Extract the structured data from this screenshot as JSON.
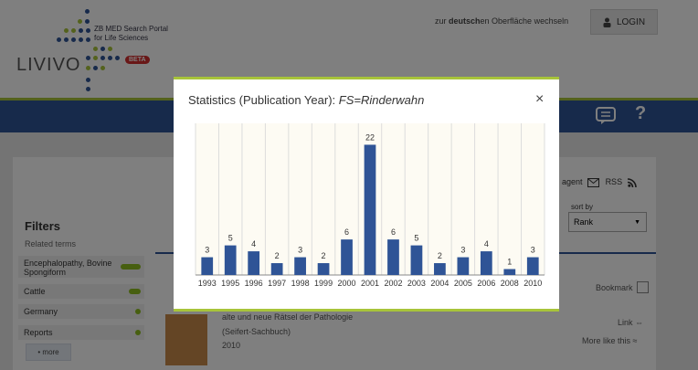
{
  "header": {
    "logo": "LIVIVO",
    "portal_line1": "ZB MED Search Portal",
    "portal_line2": "for Life Sciences",
    "beta": "BETA",
    "lang_prefix": "zur ",
    "lang_bold": "deutsch",
    "lang_suffix": "en Oberfläche wechseln",
    "login": "LOGIN"
  },
  "nav": {
    "help": "?"
  },
  "sidebar": {
    "title": "Filters",
    "related": "Related terms",
    "items": [
      {
        "label": "Encephalopathy, Bovine Spongiform",
        "level": 1.0
      },
      {
        "label": "Cattle",
        "level": 0.6
      },
      {
        "label": "Germany",
        "level": 0.3
      },
      {
        "label": "Reports",
        "level": 0.3
      }
    ],
    "more": "• more"
  },
  "toolbar": {
    "agent": "rch agent",
    "rss": "RSS",
    "sort_label": "sort by",
    "sort_value": "Rank"
  },
  "result": {
    "bookmark": "Bookmark",
    "title": "alte und neue Rätsel der Pathologie",
    "series": "(Seifert-Sachbuch)",
    "year": "2010",
    "link": "Link",
    "more_like": "More like this"
  },
  "modal": {
    "title_prefix": "Statistics (Publication Year): ",
    "title_query": "FS=Rinderwahn",
    "close": "×"
  },
  "chart_data": {
    "type": "bar",
    "categories": [
      "1993",
      "1995",
      "1996",
      "1997",
      "1998",
      "1999",
      "2000",
      "2001",
      "2002",
      "2003",
      "2004",
      "2005",
      "2006",
      "2008",
      "2010"
    ],
    "values": [
      3,
      5,
      4,
      2,
      3,
      2,
      6,
      22,
      6,
      5,
      2,
      3,
      4,
      1,
      3
    ],
    "ylim": [
      0,
      25
    ],
    "bar_color": "#2f5496"
  }
}
